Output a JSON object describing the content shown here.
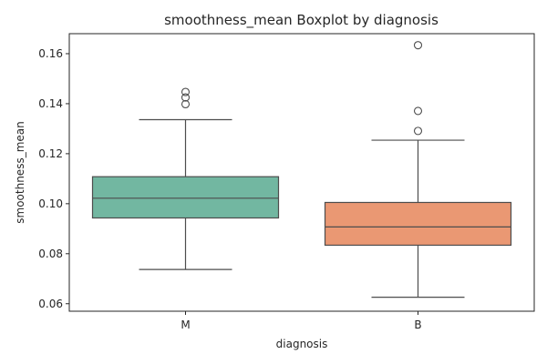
{
  "chart_data": {
    "type": "boxplot",
    "title": "smoothness_mean Boxplot by diagnosis",
    "xlabel": "diagnosis",
    "ylabel": "smoothness_mean",
    "categories": [
      "M",
      "B"
    ],
    "ylim": [
      0.057,
      0.168
    ],
    "yticks": [
      0.06,
      0.08,
      0.1,
      0.12,
      0.14,
      0.16
    ],
    "ytick_labels": [
      "0.06",
      "0.08",
      "0.10",
      "0.12",
      "0.14",
      "0.16"
    ],
    "grid": false,
    "legend": "none",
    "boxes": [
      {
        "category": "M",
        "whisker_low": 0.0737,
        "q1": 0.0943,
        "median": 0.1022,
        "q3": 0.1108,
        "whisker_high": 0.1336,
        "outliers": [
          0.1398,
          0.1425,
          0.1447
        ],
        "color": "#72b7a1"
      },
      {
        "category": "B",
        "whisker_low": 0.0626,
        "q1": 0.0834,
        "median": 0.0907,
        "q3": 0.1005,
        "whisker_high": 0.1254,
        "outliers": [
          0.1291,
          0.1371,
          0.1634
        ],
        "color": "#ea9873"
      }
    ]
  }
}
